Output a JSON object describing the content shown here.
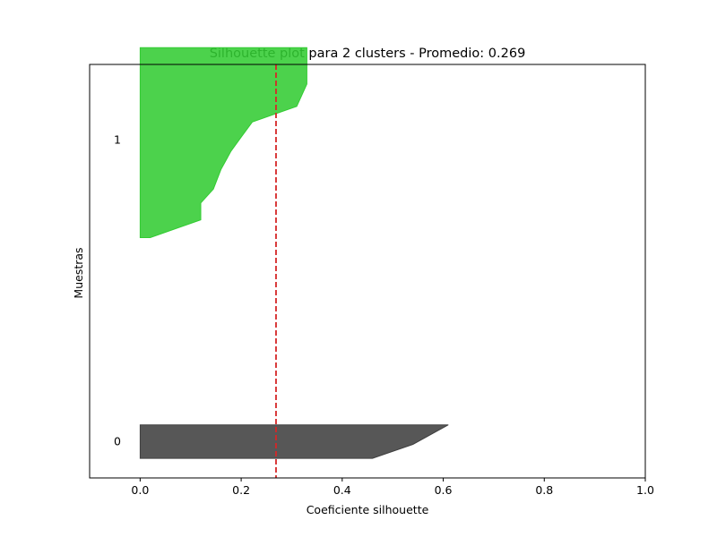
{
  "chart_data": {
    "type": "area",
    "title": "Silhouette plot para 2 clusters - Promedio: 0.269",
    "xlabel": "Coeficiente silhouette",
    "ylabel": "Muestras",
    "xlim": [
      -0.1,
      1.0
    ],
    "ylim": [
      0,
      74
    ],
    "xticks": [
      0.0,
      0.2,
      0.4,
      0.6,
      0.8,
      1.0
    ],
    "xtick_labels": [
      "0.0",
      "0.2",
      "0.4",
      "0.6",
      "0.8",
      "1.0"
    ],
    "average_line": {
      "value": 0.269,
      "color": "#d62728",
      "style": "dashed"
    },
    "grid": false,
    "clusters": [
      {
        "label": "0",
        "color": "#404040",
        "y_start": 3.5,
        "y_end": 9.5,
        "label_y": 6.5,
        "profile": [
          {
            "y": 3.5,
            "x": 0.0
          },
          {
            "y": 3.5,
            "x": 0.46
          },
          {
            "y": 6.0,
            "x": 0.54
          },
          {
            "y": 9.5,
            "x": 0.61
          },
          {
            "y": 9.5,
            "x": 0.0
          }
        ]
      },
      {
        "label": "1",
        "color": "#33cc33",
        "y_start": 43.0,
        "y_end": 77.0,
        "label_y": 60.5,
        "profile": [
          {
            "y": 43.0,
            "x": 0.0
          },
          {
            "y": 43.0,
            "x": 0.02
          },
          {
            "y": 46.2,
            "x": 0.12
          },
          {
            "y": 49.2,
            "x": 0.12
          },
          {
            "y": 51.7,
            "x": 0.145
          },
          {
            "y": 55.2,
            "x": 0.16
          },
          {
            "y": 58.5,
            "x": 0.18
          },
          {
            "y": 61.0,
            "x": 0.2
          },
          {
            "y": 63.7,
            "x": 0.222
          },
          {
            "y": 66.5,
            "x": 0.31
          },
          {
            "y": 70.5,
            "x": 0.33
          },
          {
            "y": 77.0,
            "x": 0.33
          },
          {
            "y": 77.0,
            "x": 0.0
          }
        ]
      }
    ]
  }
}
